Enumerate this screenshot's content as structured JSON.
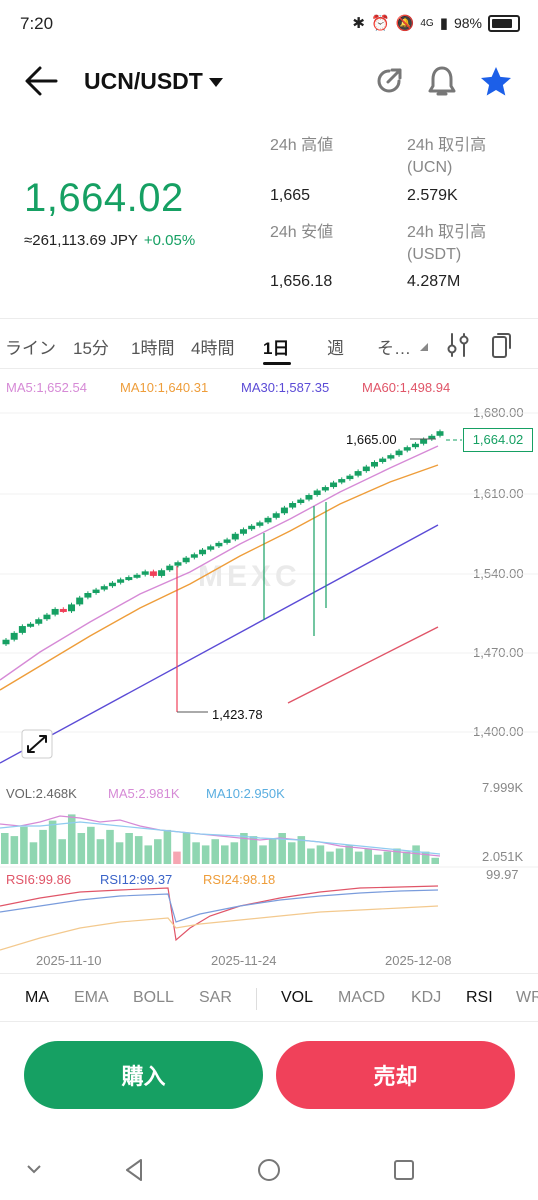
{
  "status_bar": {
    "time": "7:20",
    "network": "4G",
    "battery": "98%"
  },
  "header": {
    "pair": "UCN/USDT",
    "icons": [
      "back-arrow-icon",
      "share-icon",
      "bell-icon",
      "star-icon"
    ]
  },
  "ticker": {
    "last_price": "1,664.02",
    "jpy": "≈261,113.69 JPY",
    "change": "+0.05%",
    "high_label": "24h 高値",
    "high_value": "1,665",
    "low_label": "24h 安値",
    "low_value": "1,656.18",
    "vol_ucn_label_1": "24h 取引高",
    "vol_ucn_label_2": "(UCN)",
    "vol_ucn_value": "2.579K",
    "vol_usdt_label_1": "24h 取引高",
    "vol_usdt_label_2": "(USDT)",
    "vol_usdt_value": "4.287M"
  },
  "timeframes": [
    "ライン",
    "15分",
    "1時間",
    "4時間",
    "1日",
    "週",
    "そ…"
  ],
  "active_timeframe": "1日",
  "ma_legend": {
    "ma5": "MA5:1,652.54",
    "ma10": "MA10:1,640.31",
    "ma30": "MA30:1,587.35",
    "ma60": "MA60:1,498.94"
  },
  "price_axis": [
    "1,680.00",
    "1,610.00",
    "1,540.00",
    "1,470.00",
    "1,400.00"
  ],
  "annotations": {
    "high": "1,665.00",
    "low": "1,423.78",
    "current": "1,664.02"
  },
  "watermark": "MEXC",
  "vol_legend": {
    "vol": "VOL:2.468K",
    "ma5": "MA5:2.981K",
    "ma10": "MA10:2.950K"
  },
  "vol_axis": {
    "top": "7.999K",
    "bottom": "2.051K"
  },
  "rsi_legend": {
    "rsi6": "RSI6:99.86",
    "rsi12": "RSI12:99.37",
    "rsi24": "RSI24:98.18"
  },
  "rsi_axis_top": "99.97",
  "date_axis": [
    "2025-11-10",
    "2025-11-24",
    "2025-12-08"
  ],
  "indicator_tabs": [
    "MA",
    "EMA",
    "BOLL",
    "SAR",
    "VOL",
    "MACD",
    "KDJ",
    "RSI",
    "WR"
  ],
  "buttons": {
    "buy": "購入",
    "sell": "売却"
  },
  "colors": {
    "up": "#16a063",
    "down": "#f0415a",
    "ma5": "#d68ad6",
    "ma10": "#ee9d3a",
    "ma30": "#5b4bd6",
    "ma60": "#e05568",
    "accent_star": "#1c5fe8"
  },
  "chart_data": {
    "type": "candlestick",
    "y_axis_ticks": [
      1680,
      1610,
      1540,
      1470,
      1400
    ],
    "x_ticks": [
      "2025-11-10",
      "2025-11-24",
      "2025-12-08"
    ],
    "last_close": 1664.02,
    "period_high": 1665.0,
    "period_low": 1423.78,
    "ma_values": {
      "MA5": 1652.54,
      "MA10": 1640.31,
      "MA30": 1587.35,
      "MA60": 1498.94
    },
    "closes": [
      1481,
      1487,
      1493,
      1495,
      1499,
      1503,
      1508,
      1506,
      1512,
      1518,
      1522,
      1525,
      1528,
      1531,
      1534,
      1536,
      1538,
      1541,
      1537,
      1542,
      1546,
      1549,
      1553,
      1556,
      1560,
      1563,
      1566,
      1569,
      1574,
      1578,
      1581,
      1584,
      1588,
      1592,
      1597,
      1601,
      1604,
      1608,
      1612,
      1615,
      1619,
      1622,
      1625,
      1629,
      1633,
      1637,
      1640,
      1643,
      1647,
      1650,
      1653,
      1657,
      1660,
      1664.02
    ],
    "volume_ma_lines": {
      "MA5": 2.981,
      "MA10": 2.95,
      "last_volume": 2.468,
      "axis_max": 7.999,
      "axis_min": 2.051
    },
    "rsi": {
      "RSI6": 99.86,
      "RSI12": 99.37,
      "RSI24": 98.18,
      "axis_max": 99.97
    }
  }
}
